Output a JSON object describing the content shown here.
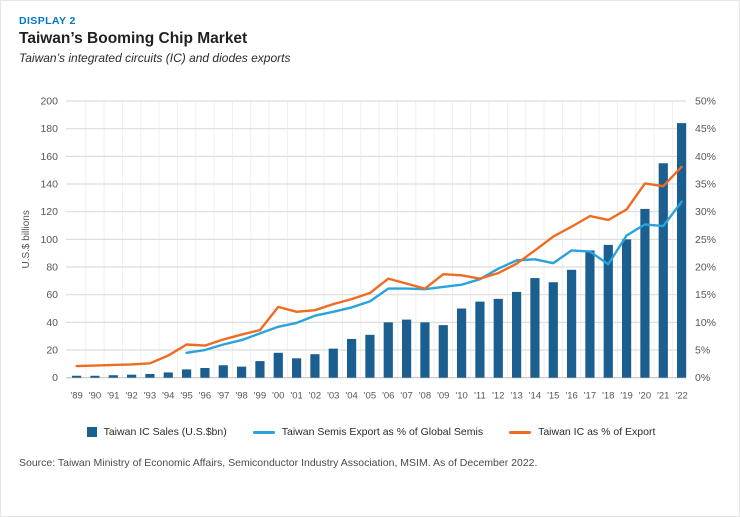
{
  "header": {
    "eyebrow": "DISPLAY 2",
    "title": "Taiwan’s Booming Chip Market",
    "subtitle": "Taiwan’s integrated circuits (IC) and diodes exports"
  },
  "source": "Source: Taiwan Ministry of Economic Affairs, Semiconductor Industry Association, MSIM. As of December 2022.",
  "colors": {
    "bar": "#1a5f90",
    "line_blue": "#2aa3dc",
    "line_orange": "#f06b22",
    "eyebrow_blue": "#0077c8",
    "grid": "#dedede",
    "baseline": "#c4c4c4",
    "tick_text": "#54565a"
  },
  "chart_data": {
    "type": "bar",
    "subtype": "bar + dual-axis lines",
    "categories": [
      "'89",
      "'90",
      "'91",
      "'92",
      "'93",
      "'94",
      "'95",
      "'96",
      "'97",
      "'98",
      "'99",
      "'00",
      "'01",
      "'02",
      "'03",
      "'04",
      "'05",
      "'06",
      "'07",
      "'08",
      "'09",
      "'10",
      "'11",
      "'12",
      "'13",
      "'14",
      "'15",
      "'16",
      "'17",
      "'18",
      "'19",
      "'20",
      "'21",
      "'22"
    ],
    "left_axis": {
      "label": "U.S.$ billions",
      "min": 0,
      "max": 200,
      "step": 20
    },
    "right_axis": {
      "label": "",
      "min": 0,
      "max": 50,
      "step": 5,
      "suffix": "%"
    },
    "grid": "on",
    "legend_position": "bottom",
    "series": [
      {
        "name": "Taiwan IC Sales (U.S.$bn)",
        "type": "bar",
        "axis": "left",
        "color": "#1a5f90",
        "values": [
          1.4,
          1.4,
          1.8,
          2.2,
          2.7,
          3.8,
          6,
          7,
          9,
          8,
          12,
          18,
          14,
          17,
          21,
          28,
          31,
          40,
          42,
          40,
          38,
          50,
          55,
          57,
          62,
          72,
          69,
          78,
          92,
          96,
          100,
          122,
          155,
          184
        ]
      },
      {
        "name": "Taiwan Semis Export as % of Global Semis",
        "type": "line",
        "axis": "right",
        "color": "#2aa3dc",
        "values": [
          null,
          null,
          null,
          null,
          null,
          null,
          4.5,
          5.0,
          6.0,
          6.8,
          8.0,
          9.2,
          9.9,
          11.2,
          11.9,
          12.7,
          13.8,
          16.1,
          16.1,
          16.0,
          16.4,
          16.8,
          17.8,
          19.7,
          21.2,
          21.4,
          20.7,
          23.0,
          22.8,
          20.5,
          25.7,
          27.7,
          27.4,
          31.8
        ]
      },
      {
        "name": "Taiwan IC as % of Export",
        "type": "line",
        "axis": "right",
        "color": "#f06b22",
        "values": [
          2.1,
          2.2,
          2.3,
          2.4,
          2.6,
          4.0,
          6.0,
          5.8,
          6.9,
          7.8,
          8.6,
          12.8,
          11.9,
          12.2,
          13.3,
          14.2,
          15.3,
          17.9,
          17.0,
          16.1,
          18.7,
          18.5,
          17.9,
          18.9,
          20.6,
          23.0,
          25.5,
          27.3,
          29.2,
          28.5,
          30.4,
          35.1,
          34.6,
          38.1
        ]
      }
    ]
  }
}
